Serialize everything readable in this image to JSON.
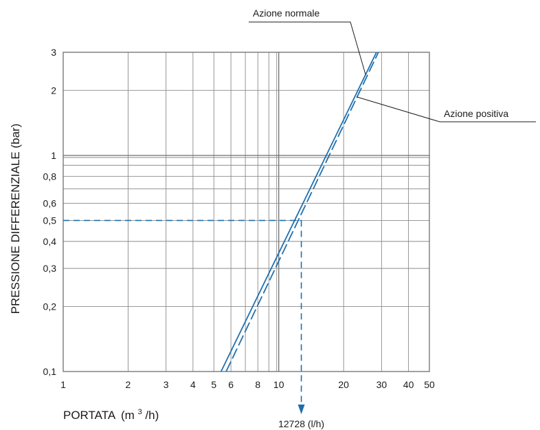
{
  "chart_data": {
    "type": "line",
    "xlabel": "PORTATA",
    "xlabel_unit_prefix": "(m",
    "xlabel_unit_sup": "3",
    "xlabel_unit_suffix": "/h)",
    "ylabel": "PRESSIONE DIFFERENZIALE (bar)",
    "x_scale": "log",
    "y_scale": "log",
    "xlim": [
      1,
      50
    ],
    "ylim": [
      0.1,
      3
    ],
    "x_ticks": [
      {
        "value": 1,
        "label": "1"
      },
      {
        "value": 2,
        "label": "2"
      },
      {
        "value": 3,
        "label": "3"
      },
      {
        "value": 4,
        "label": "4"
      },
      {
        "value": 5,
        "label": "5"
      },
      {
        "value": 6,
        "label": "6"
      },
      {
        "value": 8,
        "label": "8"
      },
      {
        "value": 10,
        "label": "10"
      },
      {
        "value": 20,
        "label": "20"
      },
      {
        "value": 30,
        "label": "30"
      },
      {
        "value": 40,
        "label": "40"
      },
      {
        "value": 50,
        "label": "50"
      }
    ],
    "x_gridlines": [
      1,
      2,
      3,
      4,
      5,
      6,
      7,
      8,
      9,
      10,
      20,
      30,
      40,
      50
    ],
    "y_ticks": [
      {
        "value": 0.1,
        "label": "0,1"
      },
      {
        "value": 0.2,
        "label": "0,2"
      },
      {
        "value": 0.3,
        "label": "0,3"
      },
      {
        "value": 0.4,
        "label": "0,4"
      },
      {
        "value": 0.5,
        "label": "0,5"
      },
      {
        "value": 0.6,
        "label": "0,6"
      },
      {
        "value": 0.8,
        "label": "0,8"
      },
      {
        "value": 1,
        "label": "1"
      },
      {
        "value": 2,
        "label": "2"
      },
      {
        "value": 3,
        "label": "3"
      }
    ],
    "y_gridlines": [
      0.1,
      0.2,
      0.3,
      0.4,
      0.5,
      0.6,
      0.7,
      0.8,
      0.9,
      1,
      2,
      3
    ],
    "grid": true,
    "series": [
      {
        "name": "Azione normale",
        "style": "solid",
        "color": "#1f6fad",
        "x": [
          5.4,
          28.4
        ],
        "y": [
          0.1,
          3
        ]
      },
      {
        "name": "Azione positiva",
        "style": "dashed",
        "color": "#1f6fad",
        "x": [
          5.7,
          29.0
        ],
        "y": [
          0.1,
          3
        ]
      }
    ],
    "annotation": {
      "pressure": 0.5,
      "flow": 12.728,
      "color": "#1f6fad",
      "label": "12728 (l/h)"
    }
  }
}
